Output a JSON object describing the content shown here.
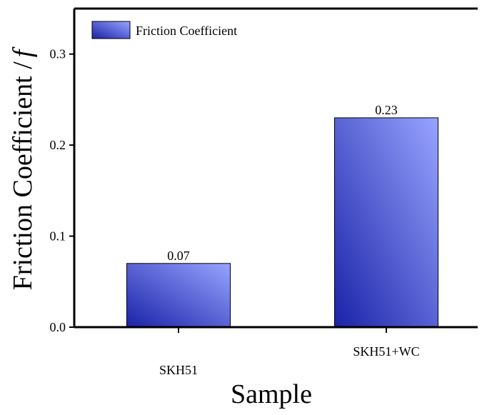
{
  "chart_data": {
    "type": "bar",
    "categories": [
      "SKH51",
      "SKH51+WC"
    ],
    "values": [
      0.07,
      0.23
    ],
    "data_labels": [
      "0.07",
      "0.23"
    ],
    "xlabel": "Sample",
    "ylabel": "Friction Coefficient /",
    "ylabel_symbol": "f",
    "ylim": [
      0,
      0.35
    ],
    "yticks": [
      0.0,
      0.1,
      0.2,
      0.3
    ],
    "ytick_labels": [
      "0.0",
      "0.1",
      "0.2",
      "0.3"
    ],
    "legend": {
      "label": "Friction Coefficient",
      "position": "top-left"
    },
    "series": [
      {
        "name": "Friction Coefficient",
        "values": [
          0.07,
          0.23
        ]
      }
    ],
    "grid": false,
    "colors": {
      "bar_dark": "#1a22a8",
      "bar_light": "#98a4ff",
      "bar_stroke": "#000000",
      "axis": "#000000"
    }
  }
}
